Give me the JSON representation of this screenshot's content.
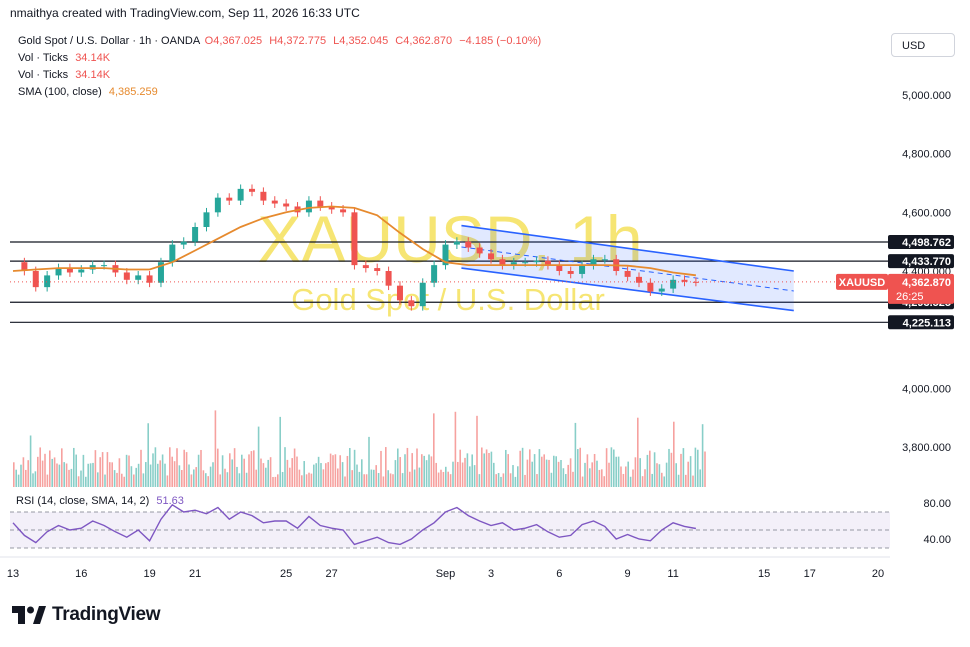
{
  "header": {
    "attribution": "nmaithya created with TradingView.com, Sep 11, 2026 16:33 UTC",
    "symbol_line": "Gold Spot / U.S. Dollar · 1h · OANDA",
    "ohlc": {
      "open": "O4,367.025",
      "high": "H4,372.775",
      "low": "L4,352.045",
      "close": "C4,362.870",
      "change": "−4.185 (−0.10%)"
    }
  },
  "legend": [
    {
      "label": "Vol · Ticks",
      "value": "34.14K"
    },
    {
      "label": "Vol · Ticks",
      "value": "34.14K"
    },
    {
      "label": "SMA (100, close)",
      "value": "4,385.259"
    }
  ],
  "currency_button": "USD",
  "watermark": {
    "symbol": "XAUUSD, 1h",
    "name": "Gold Spot / U.S. Dollar"
  },
  "colors": {
    "bull": "#26a69a",
    "bear": "#ef5350",
    "sma": "#e68a2e",
    "channel": "#2962ff",
    "rsi": "#7e57c2",
    "watermark": "#f5e05a"
  },
  "chart_data": {
    "type": "line",
    "title": "Gold Spot / U.S. Dollar · 1h · OANDA",
    "price_axis": {
      "ticks": [
        {
          "value": 5000,
          "label": "5,000.000"
        },
        {
          "value": 4800,
          "label": "4,800.000"
        },
        {
          "value": 4600,
          "label": "4,600.000"
        },
        {
          "value": 4000,
          "label": "4,000.000"
        },
        {
          "value": 3800,
          "label": "3,800.000"
        }
      ],
      "range": [
        3680,
        5150
      ]
    },
    "horizontal_levels": [
      {
        "value": 4498.762,
        "label": "4,498.762"
      },
      {
        "value": 4433.77,
        "label": "4,433.770"
      },
      {
        "value": 4293.525,
        "label": "4,293.525"
      },
      {
        "value": 4225.113,
        "label": "4,225.113"
      }
    ],
    "last_price": {
      "symbol": "XAUUSD",
      "value": "4,362.870",
      "countdown": "26:25",
      "prev_label": "4,400.000"
    },
    "x_axis": {
      "labels": [
        "13",
        "16",
        "19",
        "21",
        "25",
        "27",
        "Sep",
        "3",
        "6",
        "9",
        "11",
        "15",
        "17",
        "20"
      ],
      "label_days": [
        13,
        16,
        19,
        21,
        25,
        27,
        32,
        34,
        37,
        40,
        42,
        46,
        48,
        51
      ]
    },
    "price_series": {
      "name": "XAUUSD",
      "days": [
        13,
        13.5,
        14,
        14.5,
        15,
        15.5,
        16,
        16.5,
        17,
        17.5,
        18,
        18.5,
        19,
        19.5,
        20,
        20.5,
        21,
        21.5,
        22,
        22.5,
        23,
        23.5,
        24,
        24.5,
        25,
        25.5,
        26,
        26.5,
        27,
        27.5,
        28,
        28.5,
        29,
        29.5,
        30,
        30.5,
        31,
        31.5,
        32,
        32.5,
        33,
        33.5,
        34,
        34.5,
        35,
        35.5,
        36,
        36.5,
        37,
        37.5,
        38,
        38.5,
        39,
        39.5,
        40,
        40.5,
        41,
        41.5,
        42,
        42.5,
        43
      ],
      "values": [
        4430,
        4400,
        4345,
        4385,
        4410,
        4395,
        4405,
        4420,
        4420,
        4395,
        4370,
        4385,
        4360,
        4430,
        4490,
        4500,
        4550,
        4600,
        4650,
        4640,
        4680,
        4670,
        4640,
        4630,
        4620,
        4600,
        4640,
        4620,
        4610,
        4600,
        4420,
        4410,
        4400,
        4350,
        4300,
        4280,
        4360,
        4420,
        4490,
        4500,
        4480,
        4460,
        4440,
        4420,
        4430,
        4430,
        4435,
        4420,
        4400,
        4390,
        4420,
        4440,
        4440,
        4400,
        4380,
        4360,
        4330,
        4340,
        4370,
        4363,
        4362.87
      ]
    },
    "sma_series": {
      "name": "SMA (100, close)",
      "days": [
        13,
        14,
        15,
        16,
        17,
        18,
        19,
        20,
        21,
        22,
        23,
        24,
        25,
        26,
        27,
        28,
        29,
        30,
        31,
        32,
        33,
        34,
        35,
        36,
        37,
        38,
        39,
        40,
        41,
        42,
        43
      ],
      "values": [
        4400,
        4405,
        4410,
        4410,
        4410,
        4405,
        4405,
        4430,
        4470,
        4510,
        4550,
        4580,
        4600,
        4615,
        4620,
        4615,
        4590,
        4530,
        4475,
        4430,
        4420,
        4420,
        4420,
        4420,
        4420,
        4420,
        4420,
        4418,
        4410,
        4395,
        4385.259
      ]
    },
    "channel": {
      "upper": [
        {
          "day": 32.7,
          "value": 4555
        },
        {
          "day": 47.3,
          "value": 4400
        }
      ],
      "lower": [
        {
          "day": 32.7,
          "value": 4410
        },
        {
          "day": 47.3,
          "value": 4265
        }
      ],
      "median": [
        {
          "day": 32.7,
          "value": 4482
        },
        {
          "day": 47.3,
          "value": 4332
        }
      ]
    },
    "volume": {
      "name": "Vol · Ticks",
      "last": "34.14K"
    },
    "rsi": {
      "name": "RSI (14, close, SMA, 14, 2)",
      "value": "51.63",
      "ticks": [
        {
          "value": 80,
          "label": "80.00"
        },
        {
          "value": 40,
          "label": "40.00"
        }
      ],
      "band": [
        30,
        70
      ],
      "days": [
        13,
        13.5,
        14,
        14.5,
        15,
        15.5,
        16,
        16.5,
        17,
        17.5,
        18,
        18.5,
        19,
        19.5,
        20,
        20.5,
        21,
        21.5,
        22,
        22.5,
        23,
        23.5,
        24,
        24.5,
        25,
        25.5,
        26,
        26.5,
        27,
        27.5,
        28,
        28.5,
        29,
        29.5,
        30,
        30.5,
        31,
        31.5,
        32,
        32.5,
        33,
        33.5,
        34,
        34.5,
        35,
        35.5,
        36,
        36.5,
        37,
        37.5,
        38,
        38.5,
        39,
        39.5,
        40,
        40.5,
        41,
        41.5,
        42,
        42.5,
        43
      ],
      "values": [
        58,
        44,
        36,
        48,
        55,
        50,
        52,
        60,
        55,
        48,
        42,
        50,
        38,
        62,
        78,
        70,
        72,
        68,
        75,
        62,
        70,
        66,
        58,
        60,
        60,
        52,
        65,
        55,
        52,
        50,
        34,
        38,
        42,
        36,
        34,
        40,
        50,
        58,
        70,
        75,
        66,
        60,
        55,
        58,
        50,
        52,
        56,
        48,
        42,
        44,
        56,
        60,
        54,
        40,
        45,
        40,
        38,
        50,
        58,
        54,
        51.63
      ]
    }
  }
}
